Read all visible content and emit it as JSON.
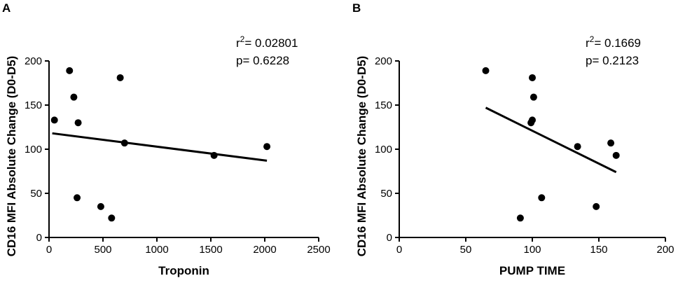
{
  "chart_data": [
    {
      "type": "scatter",
      "panel_label": "A",
      "xlabel": "Troponin",
      "ylabel": "CD16 MFI Absolute Change (D0-D5)",
      "xlim": [
        0,
        2500
      ],
      "ylim": [
        0,
        200
      ],
      "x_ticks": [
        0,
        500,
        1000,
        1500,
        2000,
        2500
      ],
      "y_ticks": [
        0,
        50,
        100,
        150,
        200
      ],
      "r2_label": "r",
      "r2_sup": "2",
      "r2_value": "= 0.02801",
      "p_text": "p= 0.6228",
      "points": [
        {
          "x": 50,
          "y": 133
        },
        {
          "x": 190,
          "y": 189
        },
        {
          "x": 230,
          "y": 159
        },
        {
          "x": 270,
          "y": 130
        },
        {
          "x": 260,
          "y": 45
        },
        {
          "x": 480,
          "y": 35
        },
        {
          "x": 580,
          "y": 22
        },
        {
          "x": 660,
          "y": 181
        },
        {
          "x": 700,
          "y": 107
        },
        {
          "x": 1530,
          "y": 93
        },
        {
          "x": 2020,
          "y": 103
        }
      ],
      "fit_line": {
        "x": [
          30,
          2020
        ],
        "y": [
          118,
          87
        ]
      }
    },
    {
      "type": "scatter",
      "panel_label": "B",
      "xlabel": "PUMP TIME",
      "ylabel": "CD16 MFI Absolute Change (D0-D5)",
      "xlim": [
        0,
        200
      ],
      "ylim": [
        0,
        200
      ],
      "x_ticks": [
        0,
        50,
        100,
        150,
        200
      ],
      "y_ticks": [
        0,
        50,
        100,
        150,
        200
      ],
      "r2_label": "r",
      "r2_sup": "2",
      "r2_value": "= 0.1669",
      "p_text": "p= 0.2123",
      "points": [
        {
          "x": 65,
          "y": 189
        },
        {
          "x": 91,
          "y": 22
        },
        {
          "x": 99,
          "y": 130
        },
        {
          "x": 100,
          "y": 133
        },
        {
          "x": 100,
          "y": 181
        },
        {
          "x": 101,
          "y": 159
        },
        {
          "x": 107,
          "y": 45
        },
        {
          "x": 134,
          "y": 103
        },
        {
          "x": 148,
          "y": 35
        },
        {
          "x": 159,
          "y": 107
        },
        {
          "x": 163,
          "y": 93
        }
      ],
      "fit_line": {
        "x": [
          65,
          163
        ],
        "y": [
          147,
          74
        ]
      }
    }
  ]
}
